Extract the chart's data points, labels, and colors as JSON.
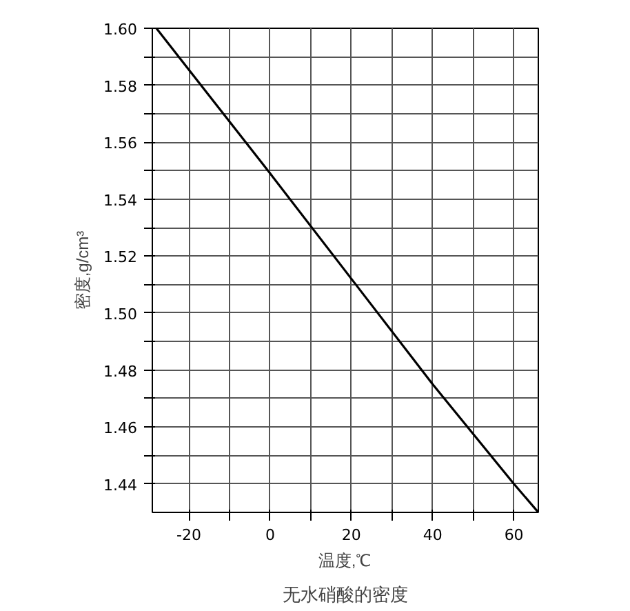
{
  "chart_data": {
    "type": "line",
    "title": "无水硝酸的密度",
    "xlabel": "温度,℃",
    "ylabel": "密度,g/cm³",
    "x": [
      -28,
      0,
      20,
      40,
      60,
      66
    ],
    "series": [
      {
        "color": "#000000",
        "values": [
          1.6,
          1.549,
          1.512,
          1.475,
          1.44,
          1.43
        ]
      }
    ],
    "xlim": [
      -29,
      66
    ],
    "ylim": [
      1.43,
      1.6
    ],
    "xticks": [
      {
        "value": -20,
        "label": "-20"
      },
      {
        "value": -10,
        "label": null
      },
      0,
      {
        "value": 10,
        "label": null
      },
      20,
      {
        "value": 30,
        "label": null
      },
      40,
      {
        "value": 50,
        "label": null
      },
      60
    ],
    "yticks": [
      1.44,
      {
        "value": 1.45,
        "label": null
      },
      1.46,
      {
        "value": 1.47,
        "label": null
      },
      1.48,
      {
        "value": 1.49,
        "label": null
      },
      "1.50",
      {
        "value": 1.51,
        "label": null
      },
      1.52,
      {
        "value": 1.53,
        "label": null
      },
      1.54,
      {
        "value": 1.55,
        "label": null
      },
      1.56,
      {
        "value": 1.57,
        "label": null
      },
      1.58,
      {
        "value": 1.59,
        "label": null
      },
      {
        "value": 1.6,
        "label": "1.60"
      }
    ],
    "grid": true,
    "marker": "none",
    "line_style": "solid"
  }
}
